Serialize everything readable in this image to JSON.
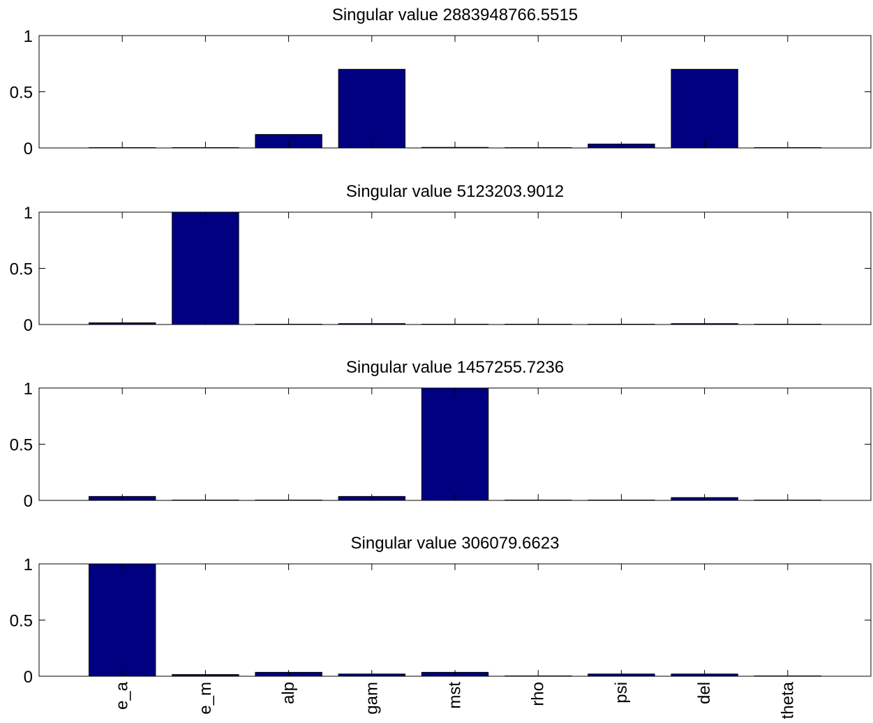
{
  "chart_data": [
    {
      "type": "bar",
      "title": "Singular value 2883948766.5515",
      "categories": [
        "e_a",
        "e_m",
        "alp",
        "gam",
        "mst",
        "rho",
        "psi",
        "del",
        "theta"
      ],
      "values": [
        0.003,
        0.0,
        0.12,
        0.7,
        0.005,
        0.0,
        0.035,
        0.7,
        0.0
      ],
      "ylim": [
        0,
        1
      ],
      "yticks": [
        "0",
        "0.5",
        "1"
      ],
      "show_xtick_labels": false,
      "grid": false,
      "bar_color": "#000080"
    },
    {
      "type": "bar",
      "title": "Singular value 5123203.9012",
      "categories": [
        "e_a",
        "e_m",
        "alp",
        "gam",
        "mst",
        "rho",
        "psi",
        "del",
        "theta"
      ],
      "values": [
        0.015,
        1.0,
        0.0,
        0.008,
        0.0,
        0.0,
        0.0,
        0.008,
        0.0
      ],
      "ylim": [
        0,
        1
      ],
      "yticks": [
        "0",
        "0.5",
        "1"
      ],
      "show_xtick_labels": false,
      "grid": false,
      "bar_color": "#000080"
    },
    {
      "type": "bar",
      "title": "Singular value 1457255.7236",
      "categories": [
        "e_a",
        "e_m",
        "alp",
        "gam",
        "mst",
        "rho",
        "psi",
        "del",
        "theta"
      ],
      "values": [
        0.035,
        0.003,
        0.0,
        0.035,
        1.0,
        0.0,
        0.003,
        0.025,
        0.0
      ],
      "ylim": [
        0,
        1
      ],
      "yticks": [
        "0",
        "0.5",
        "1"
      ],
      "show_xtick_labels": false,
      "grid": false,
      "bar_color": "#000080"
    },
    {
      "type": "bar",
      "title": "Singular value 306079.6623",
      "categories": [
        "e_a",
        "e_m",
        "alp",
        "gam",
        "mst",
        "rho",
        "psi",
        "del",
        "theta"
      ],
      "values": [
        1.0,
        0.015,
        0.035,
        0.02,
        0.035,
        0.0,
        0.02,
        0.02,
        0.0
      ],
      "ylim": [
        0,
        1
      ],
      "yticks": [
        "0",
        "0.5",
        "1"
      ],
      "show_xtick_labels": true,
      "grid": false,
      "bar_color": "#000080"
    }
  ]
}
